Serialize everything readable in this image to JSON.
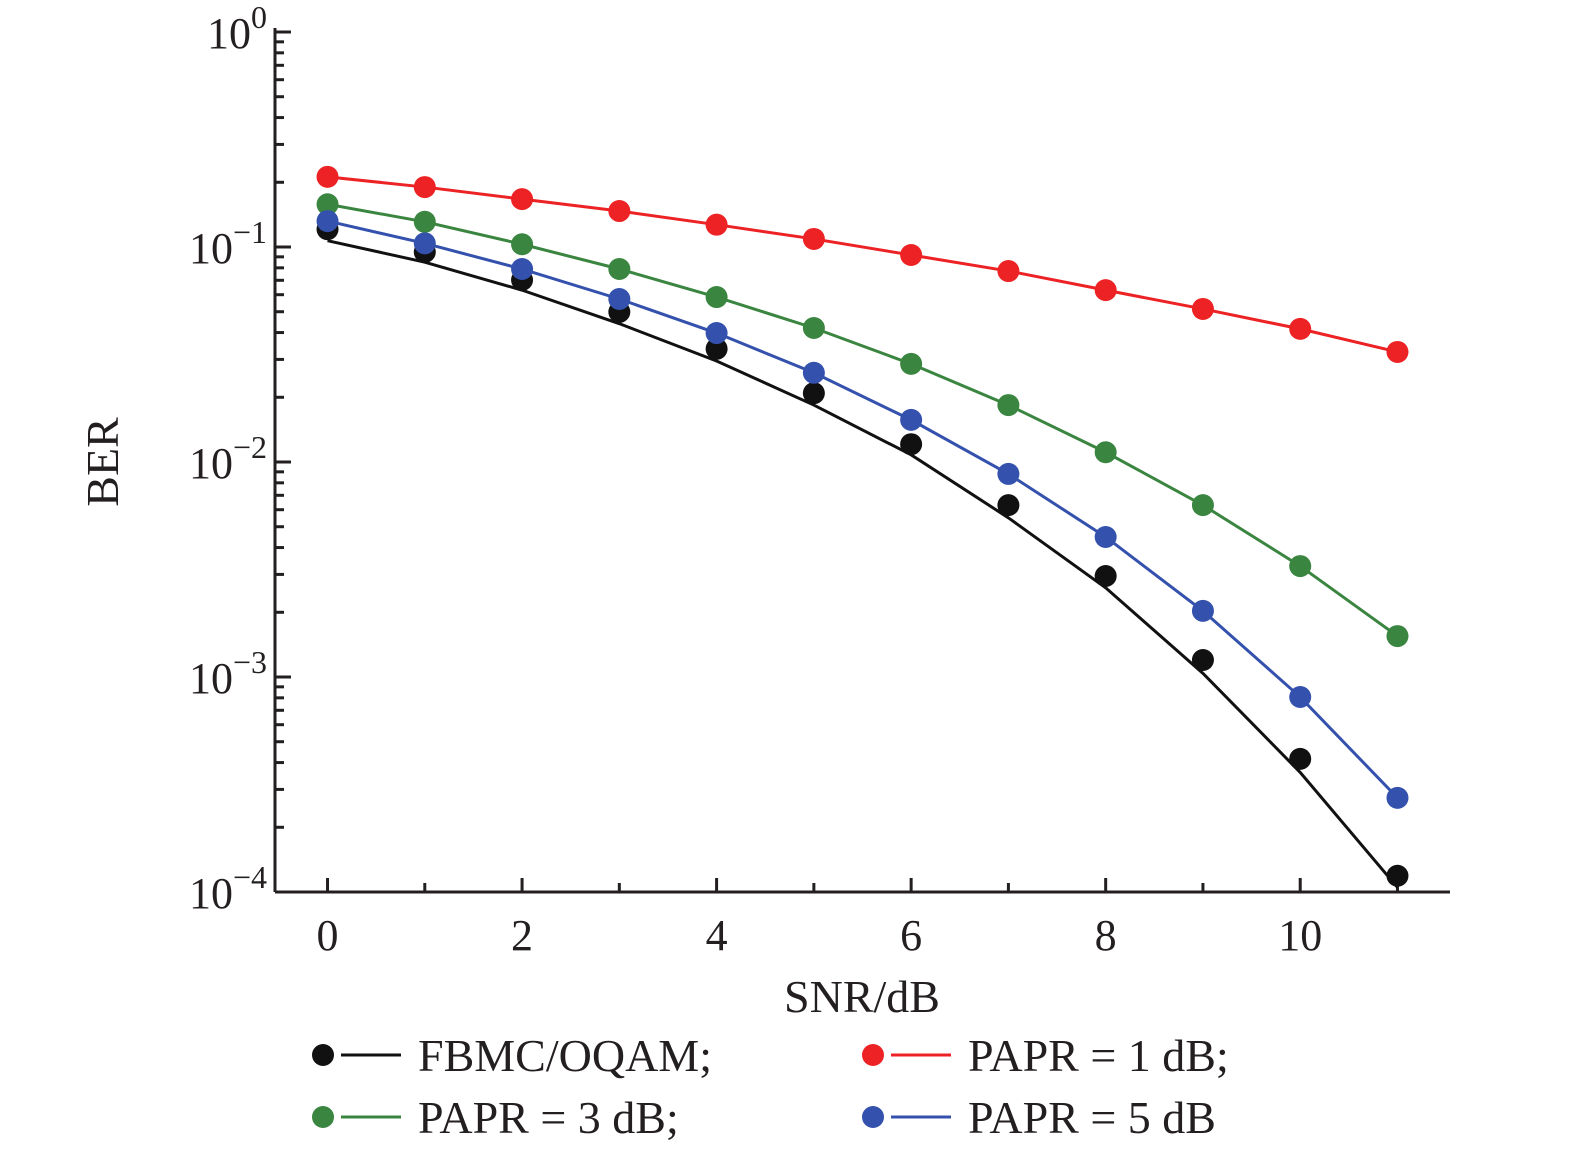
{
  "chart_data": {
    "type": "line",
    "xlabel": "SNR/dB",
    "ylabel": "BER",
    "xlim": [
      -0.54,
      11.54
    ],
    "ylim": [
      0.0001,
      1
    ],
    "yscale": "log",
    "grid": false,
    "legend_placement": "bottom",
    "x_ticks": [
      0,
      2,
      4,
      6,
      8,
      10
    ],
    "x_tick_labels": [
      "0",
      "2",
      "4",
      "6",
      "8",
      "10"
    ],
    "y_ticks": [
      1,
      0.1,
      0.01,
      0.001,
      0.0001
    ],
    "y_tick_labels": [
      {
        "base": "10",
        "exp": "0"
      },
      {
        "base": "10",
        "exp": "−1"
      },
      {
        "base": "10",
        "exp": "−2"
      },
      {
        "base": "10",
        "exp": "−3"
      },
      {
        "base": "10",
        "exp": "−4"
      }
    ],
    "x": [
      0,
      1,
      2,
      3,
      4,
      5,
      6,
      7,
      8,
      9,
      10,
      11
    ],
    "series": [
      {
        "name": "FBMC/OQAM;",
        "color": "#111111",
        "markers": [
          0.121,
          0.0948,
          0.0703,
          0.0499,
          0.0336,
          0.0209,
          0.0121,
          0.0063,
          0.00295,
          0.0012,
          0.000416,
          0.000119
        ],
        "line": [
          0.107,
          0.085,
          0.063,
          0.044,
          0.0295,
          0.0184,
          0.0108,
          0.0055,
          0.0026,
          0.00104,
          0.00036,
          0.000105
        ]
      },
      {
        "name": "PAPR = 1 dB;",
        "color": "#ed2224",
        "markers": [
          0.212,
          0.19,
          0.167,
          0.147,
          0.127,
          0.109,
          0.0918,
          0.0773,
          0.063,
          0.0515,
          0.0416,
          0.0325
        ]
      },
      {
        "name": "PAPR = 3 dB;",
        "color": "#3a8540",
        "markers": [
          0.158,
          0.131,
          0.103,
          0.079,
          0.0585,
          0.042,
          0.0286,
          0.0184,
          0.0111,
          0.0063,
          0.00328,
          0.00155
        ]
      },
      {
        "name": "PAPR = 5 dB",
        "color": "#3451ad",
        "markers": [
          0.132,
          0.104,
          0.079,
          0.0573,
          0.0398,
          0.026,
          0.0157,
          0.0088,
          0.00448,
          0.00203,
          0.000807,
          0.000274
        ]
      }
    ]
  }
}
